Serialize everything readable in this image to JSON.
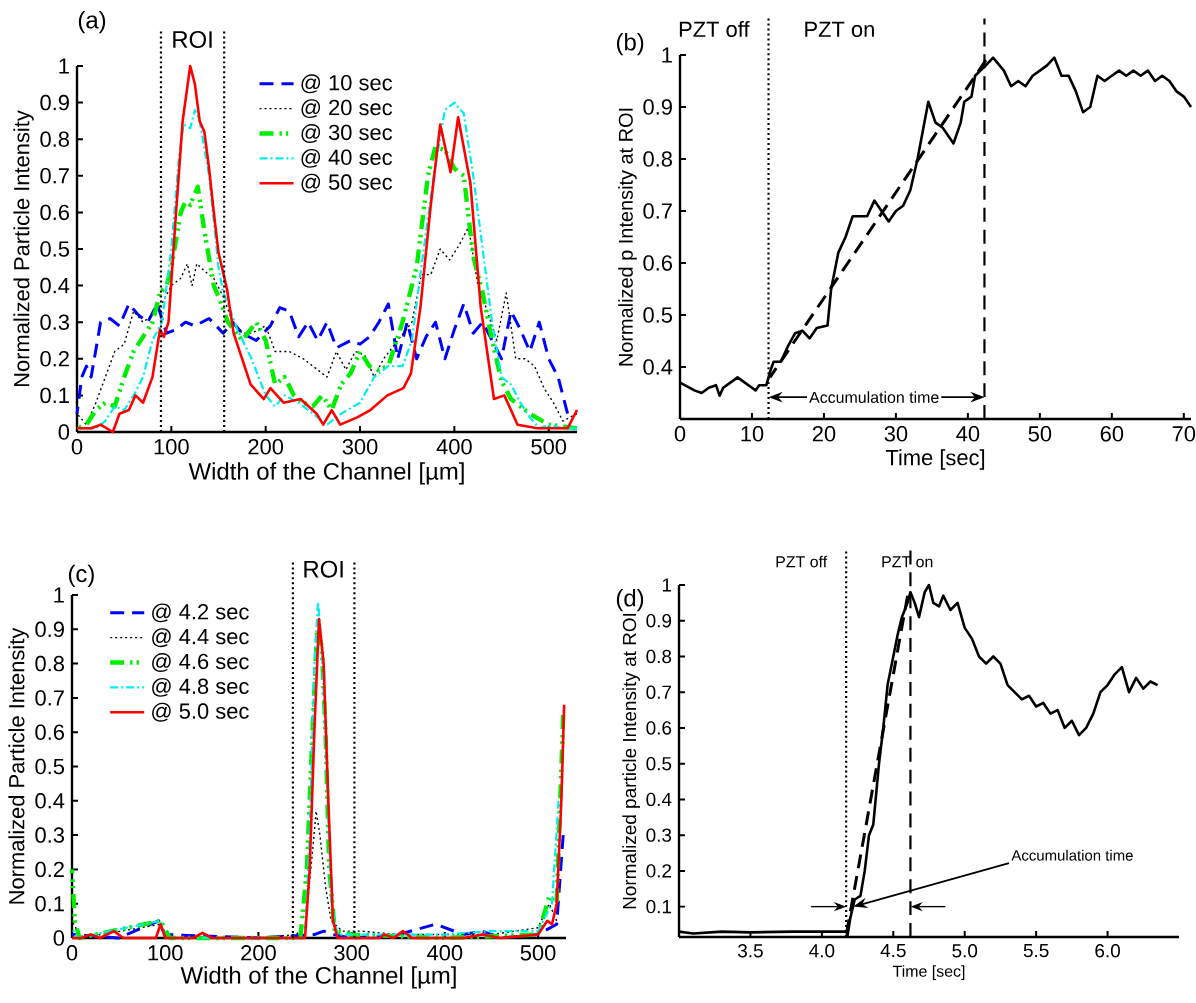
{
  "chart_data": [
    {
      "type": "line",
      "title": "(a)",
      "xlabel": "Width of the Channel [µm]",
      "ylabel": "Normalized Particle Intensity",
      "xlim": [
        0,
        530
      ],
      "ylim": [
        0,
        1
      ],
      "xticks": [
        0,
        100,
        200,
        300,
        400,
        500
      ],
      "yticks": [
        0,
        0.1,
        0.2,
        0.3,
        0.4,
        0.5,
        0.6,
        0.7,
        0.8,
        0.9,
        1
      ],
      "legend": "top",
      "ref_lines": [
        {
          "axis": "x",
          "value": 89,
          "color": "#000000",
          "line_style": "dotted"
        },
        {
          "axis": "x",
          "value": 156,
          "color": "#000000",
          "line_style": "dotted"
        }
      ],
      "annotations": [
        "ROI"
      ],
      "series": [
        {
          "name": "@ 10 sec",
          "color": "#0000ff",
          "line_style": "dashed",
          "x": [
            0,
            5,
            10,
            15,
            25,
            35,
            45,
            55,
            65,
            75,
            85,
            95,
            105,
            115,
            125,
            140,
            155,
            165,
            175,
            190,
            205,
            215,
            225,
            235,
            245,
            255,
            265,
            275,
            290,
            300,
            310,
            320,
            330,
            340,
            350,
            360,
            370,
            380,
            390,
            400,
            410,
            420,
            430,
            440,
            450,
            460,
            470,
            480,
            490,
            500,
            510,
            520
          ],
          "values": [
            0.05,
            0.15,
            0.18,
            0.15,
            0.3,
            0.31,
            0.29,
            0.35,
            0.32,
            0.3,
            0.35,
            0.27,
            0.28,
            0.3,
            0.29,
            0.31,
            0.27,
            0.3,
            0.27,
            0.25,
            0.29,
            0.34,
            0.33,
            0.26,
            0.3,
            0.25,
            0.3,
            0.23,
            0.25,
            0.24,
            0.26,
            0.3,
            0.35,
            0.2,
            0.3,
            0.2,
            0.26,
            0.3,
            0.2,
            0.28,
            0.35,
            0.27,
            0.3,
            0.25,
            0.2,
            0.33,
            0.28,
            0.22,
            0.3,
            0.2,
            0.15,
            0.05
          ]
        },
        {
          "name": "@ 20 sec",
          "color": "#000000",
          "line_style": "dotted",
          "x": [
            0,
            10,
            20,
            30,
            40,
            50,
            60,
            70,
            80,
            90,
            100,
            110,
            117,
            122,
            127,
            135,
            145,
            155,
            165,
            175,
            185,
            200,
            210,
            225,
            240,
            255,
            265,
            275,
            285,
            295,
            305,
            315,
            325,
            340,
            355,
            365,
            375,
            385,
            395,
            405,
            415,
            425,
            435,
            445,
            455,
            465,
            475,
            485,
            495,
            505,
            515,
            530
          ],
          "values": [
            0.05,
            0.02,
            0.08,
            0.15,
            0.22,
            0.24,
            0.33,
            0.3,
            0.32,
            0.35,
            0.4,
            0.42,
            0.46,
            0.4,
            0.46,
            0.44,
            0.42,
            0.37,
            0.3,
            0.27,
            0.27,
            0.29,
            0.22,
            0.22,
            0.2,
            0.17,
            0.15,
            0.22,
            0.17,
            0.22,
            0.21,
            0.15,
            0.2,
            0.25,
            0.3,
            0.43,
            0.43,
            0.5,
            0.47,
            0.51,
            0.56,
            0.4,
            0.33,
            0.25,
            0.38,
            0.2,
            0.2,
            0.18,
            0.12,
            0.08,
            0.03,
            0.05
          ]
        },
        {
          "name": "@ 30 sec",
          "color": "#00ee00",
          "line_style": "dashdotdot",
          "x": [
            0,
            10,
            20,
            30,
            40,
            50,
            60,
            70,
            80,
            88,
            95,
            100,
            110,
            115,
            120,
            128,
            135,
            145,
            150,
            160,
            175,
            190,
            200,
            210,
            220,
            230,
            240,
            250,
            260,
            270,
            280,
            290,
            300,
            310,
            320,
            330,
            345,
            360,
            372,
            380,
            390,
            400,
            410,
            420,
            430,
            440,
            450,
            460,
            480,
            500,
            530
          ],
          "values": [
            0.01,
            0.02,
            0.06,
            0.08,
            0.07,
            0.15,
            0.22,
            0.26,
            0.3,
            0.38,
            0.4,
            0.45,
            0.6,
            0.63,
            0.62,
            0.67,
            0.55,
            0.4,
            0.37,
            0.3,
            0.25,
            0.3,
            0.25,
            0.13,
            0.15,
            0.1,
            0.08,
            0.07,
            0.1,
            0.06,
            0.13,
            0.16,
            0.22,
            0.18,
            0.17,
            0.18,
            0.3,
            0.45,
            0.7,
            0.78,
            0.77,
            0.72,
            0.7,
            0.48,
            0.38,
            0.25,
            0.14,
            0.09,
            0.05,
            0.02,
            0.01
          ]
        },
        {
          "name": "@ 40 sec",
          "color": "#00eeee",
          "line_style": "dashdot",
          "x": [
            0,
            20,
            30,
            40,
            50,
            60,
            70,
            80,
            90,
            100,
            108,
            113,
            120,
            125,
            130,
            140,
            150,
            155,
            160,
            170,
            185,
            200,
            210,
            220,
            235,
            250,
            265,
            280,
            300,
            315,
            330,
            345,
            355,
            365,
            378,
            390,
            400,
            410,
            420,
            430,
            440,
            450,
            460,
            470,
            480,
            490,
            500,
            515,
            530
          ],
          "values": [
            0.01,
            0.01,
            0.03,
            0.07,
            0.06,
            0.1,
            0.15,
            0.25,
            0.3,
            0.5,
            0.75,
            0.84,
            0.83,
            0.88,
            0.85,
            0.7,
            0.45,
            0.38,
            0.35,
            0.28,
            0.2,
            0.1,
            0.07,
            0.1,
            0.08,
            0.05,
            0.02,
            0.05,
            0.08,
            0.15,
            0.18,
            0.18,
            0.25,
            0.45,
            0.7,
            0.88,
            0.9,
            0.87,
            0.7,
            0.5,
            0.3,
            0.15,
            0.13,
            0.08,
            0.04,
            0.01,
            0.02,
            0.01,
            0.01
          ]
        },
        {
          "name": "@ 50 sec",
          "color": "#ff0000",
          "line_style": "solid",
          "x": [
            0,
            15,
            25,
            38,
            45,
            55,
            62,
            70,
            80,
            88,
            92,
            97,
            105,
            112,
            120,
            125,
            130,
            135,
            140,
            145,
            150,
            159,
            166,
            184,
            198,
            205,
            219,
            237,
            254,
            261,
            270,
            279,
            297,
            311,
            329,
            346,
            354,
            364,
            375,
            385,
            396,
            404,
            417,
            428,
            442,
            453,
            467,
            488,
            520,
            530
          ],
          "values": [
            0.01,
            0.01,
            0.02,
            0.0,
            0.05,
            0.06,
            0.1,
            0.08,
            0.15,
            0.28,
            0.26,
            0.3,
            0.6,
            0.85,
            1.0,
            0.95,
            0.85,
            0.82,
            0.72,
            0.6,
            0.49,
            0.39,
            0.27,
            0.13,
            0.09,
            0.12,
            0.08,
            0.09,
            0.05,
            0.02,
            0.06,
            0.02,
            0.04,
            0.06,
            0.1,
            0.12,
            0.16,
            0.34,
            0.62,
            0.84,
            0.71,
            0.86,
            0.68,
            0.34,
            0.09,
            0.1,
            0.02,
            0.01,
            0.01,
            0.06
          ]
        }
      ]
    },
    {
      "type": "line",
      "title": "(b)",
      "xlabel": "Time [sec]",
      "ylabel": "Normalized p Intensity at ROI",
      "xlim": [
        0,
        71
      ],
      "ylim": [
        0.3,
        1
      ],
      "xticks": [
        0,
        10,
        20,
        30,
        40,
        50,
        60,
        70
      ],
      "yticks": [
        0.4,
        0.5,
        0.6,
        0.7,
        0.8,
        0.9,
        1
      ],
      "ref_lines": [
        {
          "axis": "x",
          "value": 12.3,
          "color": "#000000",
          "line_style": "dotted"
        },
        {
          "axis": "x",
          "value": 42.3,
          "color": "#000000",
          "line_style": "dashed"
        }
      ],
      "annotations": [
        "PZT off",
        "PZT on",
        "Accumulation time"
      ],
      "series": [
        {
          "color": "#000000",
          "line_style": "solid",
          "x": [
            0,
            2,
            3,
            4,
            5,
            5.5,
            6,
            7,
            8,
            9,
            10,
            10.5,
            11,
            12,
            12.5,
            13,
            14,
            15,
            16,
            17,
            18,
            19,
            20.5,
            21,
            22,
            23,
            24,
            25,
            26,
            27,
            28,
            29,
            30,
            31,
            32,
            33,
            34.5,
            35.5,
            36.5,
            37.5,
            38,
            39,
            39.5,
            40.5,
            41,
            42.5,
            43.5,
            45,
            46,
            47,
            48,
            49,
            50,
            51,
            52,
            53,
            54,
            55,
            56,
            57,
            58,
            59,
            60,
            61,
            62,
            63,
            64,
            65,
            66,
            67,
            68,
            69,
            70,
            71
          ],
          "values": [
            0.37,
            0.355,
            0.35,
            0.36,
            0.365,
            0.345,
            0.36,
            0.37,
            0.38,
            0.37,
            0.36,
            0.355,
            0.365,
            0.365,
            0.39,
            0.41,
            0.41,
            0.44,
            0.465,
            0.47,
            0.455,
            0.475,
            0.48,
            0.55,
            0.62,
            0.65,
            0.69,
            0.69,
            0.69,
            0.72,
            0.7,
            0.68,
            0.7,
            0.71,
            0.74,
            0.8,
            0.91,
            0.87,
            0.86,
            0.84,
            0.83,
            0.87,
            0.91,
            0.92,
            0.96,
            0.98,
            0.995,
            0.97,
            0.94,
            0.95,
            0.94,
            0.96,
            0.97,
            0.98,
            0.995,
            0.96,
            0.96,
            0.93,
            0.89,
            0.9,
            0.96,
            0.95,
            0.96,
            0.97,
            0.96,
            0.97,
            0.96,
            0.97,
            0.95,
            0.96,
            0.95,
            0.93,
            0.92,
            0.9
          ]
        },
        {
          "color": "#000000",
          "line_style": "dashed",
          "x": [
            12.5,
            42.5
          ],
          "values": [
            0.38,
            0.99
          ]
        }
      ]
    },
    {
      "type": "line",
      "title": "(c)",
      "xlabel": "Width of the Channel [µm]",
      "ylabel": "Normalized Particle Intensity",
      "xlim": [
        0,
        530
      ],
      "ylim": [
        0,
        1
      ],
      "xticks": [
        0,
        100,
        200,
        300,
        400,
        500
      ],
      "yticks": [
        0,
        0.1,
        0.2,
        0.3,
        0.4,
        0.5,
        0.6,
        0.7,
        0.8,
        0.9,
        1
      ],
      "legend": "top left",
      "ref_lines": [
        {
          "axis": "x",
          "value": 237,
          "color": "#000000",
          "line_style": "dotted"
        },
        {
          "axis": "x",
          "value": 303,
          "color": "#000000",
          "line_style": "dotted"
        }
      ],
      "annotations": [
        "ROI"
      ],
      "series": [
        {
          "name": "@ 4.2 sec",
          "color": "#0000ff",
          "line_style": "dashed",
          "x": [
            0,
            50,
            93,
            100,
            200,
            260,
            270,
            280,
            300,
            350,
            390,
            410,
            420,
            440,
            460,
            500,
            520,
            527
          ],
          "values": [
            0.01,
            0.0,
            0.05,
            0.01,
            0.0,
            0.01,
            0.02,
            0.01,
            0.0,
            0.01,
            0.04,
            0.02,
            0.01,
            0.02,
            0.0,
            0.01,
            0.04,
            0.3
          ]
        },
        {
          "name": "@ 4.4 sec",
          "color": "#000000",
          "line_style": "dotted",
          "x": [
            0,
            10,
            95,
            100,
            200,
            240,
            250,
            258,
            262,
            266,
            272,
            278,
            290,
            310,
            350,
            400,
            450,
            500,
            512,
            520
          ],
          "values": [
            0.05,
            0.0,
            0.04,
            0.0,
            0.0,
            0.01,
            0.03,
            0.25,
            0.37,
            0.3,
            0.15,
            0.05,
            0.02,
            0.02,
            0.01,
            0.01,
            0.01,
            0.03,
            0.1,
            0.05
          ]
        },
        {
          "name": "@ 4.6 sec",
          "color": "#00ee00",
          "line_style": "dashdotdot",
          "x": [
            0,
            3,
            8,
            95,
            105,
            245,
            252,
            258,
            263,
            268,
            272,
            276,
            282,
            300,
            400,
            500,
            512,
            520,
            527
          ],
          "values": [
            0.2,
            0.05,
            0.0,
            0.05,
            0.0,
            0.0,
            0.2,
            0.6,
            0.9,
            0.85,
            0.6,
            0.2,
            0.02,
            0.01,
            0.0,
            0.01,
            0.12,
            0.1,
            0.65
          ]
        },
        {
          "name": "@ 4.8 sec",
          "color": "#00eeee",
          "line_style": "dashdot",
          "x": [
            0,
            5,
            95,
            100,
            250,
            255,
            260,
            264,
            268,
            273,
            278,
            285,
            400,
            450,
            500,
            515,
            522
          ],
          "values": [
            0.03,
            0.0,
            0.05,
            0.0,
            0.0,
            0.3,
            0.8,
            0.98,
            0.85,
            0.5,
            0.1,
            0.01,
            0.01,
            0.02,
            0.02,
            0.1,
            0.4
          ]
        },
        {
          "name": "@ 5.0 sec",
          "color": "#ff0000",
          "line_style": "solid",
          "x": [
            0,
            10,
            20,
            30,
            45,
            55,
            90,
            95,
            100,
            130,
            140,
            150,
            250,
            255,
            260,
            265,
            270,
            275,
            280,
            285,
            330,
            335,
            345,
            355,
            365,
            420,
            440,
            460,
            500,
            510,
            515,
            520,
            525,
            528
          ],
          "values": [
            0.0,
            0.0,
            0.01,
            0.0,
            0.02,
            0.0,
            0.0,
            0.04,
            0.0,
            0.0,
            0.015,
            0.0,
            0.0,
            0.2,
            0.6,
            0.93,
            0.8,
            0.4,
            0.05,
            0.0,
            0.0,
            0.01,
            0.0,
            0.02,
            0.0,
            0.0,
            0.01,
            0.0,
            0.01,
            0.05,
            0.04,
            0.1,
            0.4,
            0.68
          ]
        }
      ]
    },
    {
      "type": "line",
      "title": "(d)",
      "xlabel": "Time [sec]",
      "ylabel": "Normalized particle Intensity at ROI",
      "xlim": [
        3.0,
        6.5
      ],
      "ylim": [
        0.015,
        1
      ],
      "xticks": [
        3.5,
        {
          "value": 4,
          "label": "4.0"
        },
        4.5,
        {
          "value": 5,
          "label": "5.0"
        },
        5.5,
        {
          "value": 6,
          "label": "6.0"
        }
      ],
      "yticks": [
        0.1,
        0.2,
        0.3,
        0.4,
        0.5,
        0.6,
        0.7,
        0.8,
        0.9,
        1
      ],
      "ref_lines": [
        {
          "axis": "x",
          "value": 4.17,
          "color": "#000000",
          "line_style": "dotted"
        },
        {
          "axis": "x",
          "value": 4.62,
          "color": "#000000",
          "line_style": "dashed"
        }
      ],
      "annotations": [
        "PZT off",
        "PZT on",
        {
          "text": "Accumulation time",
          "x": 4.22,
          "y": 0.1
        }
      ],
      "series": [
        {
          "color": "#000000",
          "line_style": "solid",
          "x": [
            3.0,
            3.1,
            3.3,
            3.5,
            3.8,
            4.0,
            4.17,
            4.18,
            4.2,
            4.23,
            4.27,
            4.3,
            4.33,
            4.36,
            4.4,
            4.43,
            4.46,
            4.5,
            4.53,
            4.56,
            4.6,
            4.62,
            4.65,
            4.68,
            4.72,
            4.75,
            4.78,
            4.82,
            4.85,
            4.9,
            4.95,
            5.0,
            5.05,
            5.1,
            5.15,
            5.2,
            5.25,
            5.3,
            5.35,
            5.4,
            5.45,
            5.5,
            5.55,
            5.6,
            5.65,
            5.7,
            5.75,
            5.8,
            5.85,
            5.9,
            5.95,
            6.0,
            6.05,
            6.1,
            6.15,
            6.2,
            6.25,
            6.3,
            6.35
          ],
          "values": [
            0.03,
            0.025,
            0.03,
            0.028,
            0.03,
            0.03,
            0.03,
            0.02,
            0.07,
            0.12,
            0.13,
            0.2,
            0.3,
            0.33,
            0.5,
            0.6,
            0.72,
            0.8,
            0.86,
            0.91,
            0.95,
            0.98,
            0.95,
            0.91,
            0.98,
            1.0,
            0.95,
            0.94,
            0.97,
            0.93,
            0.95,
            0.88,
            0.85,
            0.8,
            0.78,
            0.8,
            0.78,
            0.72,
            0.7,
            0.68,
            0.69,
            0.66,
            0.67,
            0.64,
            0.65,
            0.6,
            0.62,
            0.58,
            0.6,
            0.64,
            0.7,
            0.72,
            0.75,
            0.77,
            0.7,
            0.74,
            0.71,
            0.73,
            0.72
          ]
        },
        {
          "color": "#000000",
          "line_style": "dashed",
          "x": [
            4.17,
            4.6
          ],
          "values": [
            0.02,
            0.97
          ]
        }
      ]
    }
  ]
}
